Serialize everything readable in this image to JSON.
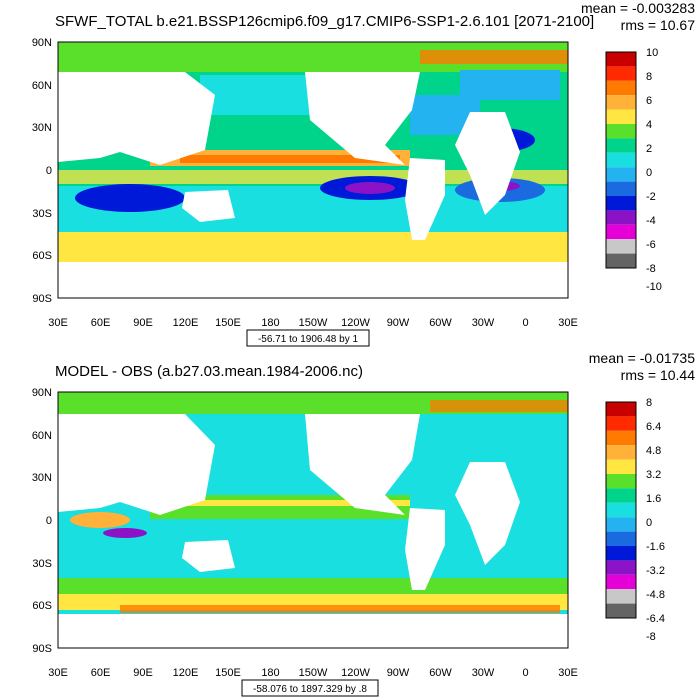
{
  "panels": [
    {
      "title": "SFWF_TOTAL b.e21.BSSP126cmip6.f09_g17.CMIP6-SSP1-2.6.101 [2071-2100]",
      "stat_mean": "mean = -0.003283",
      "stat_rms": "rms = 10.67",
      "range_note": "-56.71 to 1906.48 by 1",
      "lat_labels": [
        "90N",
        "60N",
        "30N",
        "0",
        "30S",
        "60S",
        "90S"
      ],
      "lon_labels": [
        "30E",
        "60E",
        "90E",
        "120E",
        "150E",
        "180",
        "150W",
        "120W",
        "90W",
        "60W",
        "30W",
        "0",
        "30E"
      ],
      "colorbar": {
        "labels": [
          "10",
          "8",
          "6",
          "4",
          "2",
          "0",
          "-2",
          "-4",
          "-6",
          "-8",
          "-10"
        ],
        "colors": [
          "#c80000",
          "#ff2a00",
          "#ff7a00",
          "#ffb13a",
          "#ffe640",
          "#5ae02a",
          "#00d48a",
          "#19dfe0",
          "#22b3f0",
          "#1a6ae0",
          "#0018d8",
          "#8c12c8",
          "#e600d8",
          "#c8c8c8",
          "#646464"
        ]
      }
    },
    {
      "title": "MODEL - OBS (a.b27.03.mean.1984-2006.nc)",
      "stat_mean": "mean = -0.01735",
      "stat_rms": "rms = 10.44",
      "range_note": "-58.076 to 1897.329 by .8",
      "lat_labels": [
        "90N",
        "60N",
        "30N",
        "0",
        "30S",
        "60S",
        "90S"
      ],
      "lon_labels": [
        "30E",
        "60E",
        "90E",
        "120E",
        "150E",
        "180",
        "150W",
        "120W",
        "90W",
        "60W",
        "30W",
        "0",
        "30E"
      ],
      "colorbar": {
        "labels": [
          "8",
          "6.4",
          "4.8",
          "3.2",
          "1.6",
          "0",
          "-1.6",
          "-3.2",
          "-4.8",
          "-6.4",
          "-8"
        ],
        "colors": [
          "#c80000",
          "#ff2a00",
          "#ff7a00",
          "#ffb13a",
          "#ffe640",
          "#5ae02a",
          "#00d48a",
          "#19dfe0",
          "#22b3f0",
          "#1a6ae0",
          "#0018d8",
          "#8c12c8",
          "#e600d8",
          "#c8c8c8",
          "#646464"
        ]
      }
    }
  ]
}
